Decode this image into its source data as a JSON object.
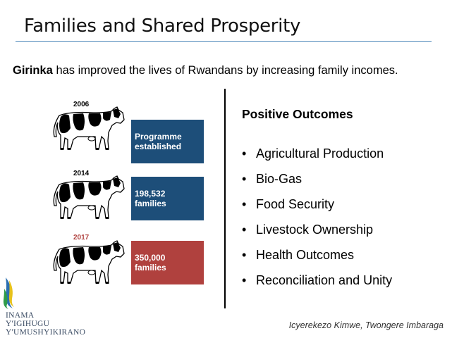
{
  "slide": {
    "title": "Families and Shared Prosperity",
    "intro_bold": "Girinka",
    "intro_rest": " has improved the lives of Rwandans by increasing family incomes."
  },
  "timeline": [
    {
      "year": "2006",
      "line1": "Programme",
      "line2": "established",
      "color": "#1d4e79"
    },
    {
      "year": "2014",
      "line1": "198,532",
      "line2": "families",
      "color": "#1d4e79"
    },
    {
      "year": "2017",
      "line1": "350,000",
      "line2": "families",
      "color": "#b0413e"
    }
  ],
  "outcomes": {
    "heading": "Positive Outcomes",
    "bullet": "•",
    "items": [
      "Agricultural Production",
      "Bio-Gas",
      "Food Security",
      "Livestock Ownership",
      "Health Outcomes",
      "Reconciliation and Unity"
    ]
  },
  "footer": {
    "org_line1": "INAMA",
    "org_line2": "Y'IGIHUGU",
    "org_line3": "Y'UMUSHYIKIRANO",
    "tagline": "Icyerekezo Kimwe, Twongere Imbaraga"
  }
}
